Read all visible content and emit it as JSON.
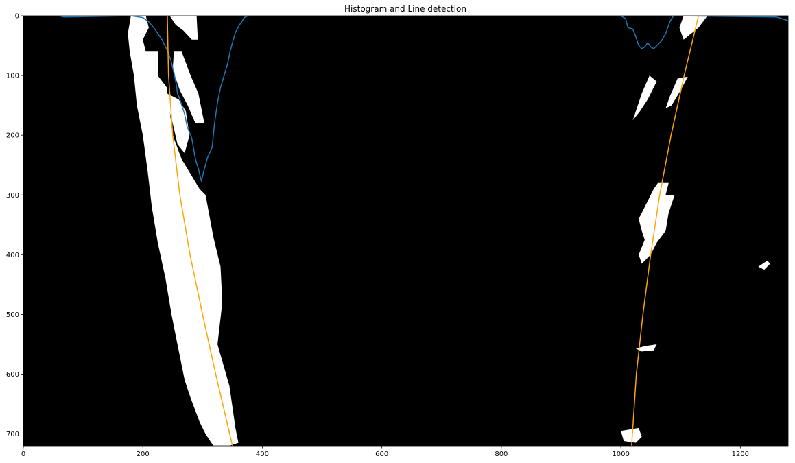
{
  "chart_data": {
    "type": "line",
    "title": "Histogram and Line detection",
    "xlabel": "",
    "ylabel": "",
    "xlim": [
      0,
      1280
    ],
    "ylim": [
      720,
      0
    ],
    "x_ticks": [
      0,
      200,
      400,
      600,
      800,
      1000,
      1200
    ],
    "y_ticks": [
      0,
      100,
      200,
      300,
      400,
      500,
      600,
      700
    ],
    "grid": false,
    "legend": "none",
    "background": "#000000",
    "binary_image": {
      "foreground_color": "#ffffff",
      "description": "bird's-eye binary lane-line image",
      "blobs": [
        [
          [
            180,
            0
          ],
          [
            205,
            0
          ],
          [
            210,
            20
          ],
          [
            200,
            40
          ],
          [
            205,
            60
          ],
          [
            225,
            60
          ],
          [
            225,
            100
          ],
          [
            240,
            120
          ],
          [
            250,
            200
          ],
          [
            265,
            240
          ],
          [
            295,
            290
          ],
          [
            305,
            300
          ],
          [
            318,
            370
          ],
          [
            330,
            420
          ],
          [
            333,
            480
          ],
          [
            325,
            550
          ],
          [
            345,
            620
          ],
          [
            355,
            690
          ],
          [
            360,
            715
          ],
          [
            345,
            720
          ],
          [
            318,
            720
          ],
          [
            305,
            700
          ],
          [
            295,
            680
          ],
          [
            280,
            640
          ],
          [
            270,
            610
          ],
          [
            258,
            550
          ],
          [
            248,
            500
          ],
          [
            238,
            440
          ],
          [
            225,
            380
          ],
          [
            215,
            320
          ],
          [
            208,
            260
          ],
          [
            200,
            200
          ],
          [
            190,
            150
          ],
          [
            185,
            100
          ],
          [
            178,
            60
          ],
          [
            175,
            30
          ]
        ],
        [
          [
            245,
            0
          ],
          [
            290,
            0
          ],
          [
            292,
            40
          ],
          [
            282,
            40
          ],
          [
            268,
            25
          ],
          [
            255,
            15
          ]
        ],
        [
          [
            252,
            60
          ],
          [
            265,
            60
          ],
          [
            280,
            100
          ],
          [
            293,
            130
          ],
          [
            303,
            180
          ],
          [
            288,
            180
          ],
          [
            275,
            150
          ],
          [
            262,
            125
          ],
          [
            250,
            90
          ]
        ],
        [
          [
            240,
            130
          ],
          [
            260,
            140
          ],
          [
            272,
            160
          ],
          [
            278,
            200
          ],
          [
            270,
            230
          ],
          [
            258,
            215
          ],
          [
            250,
            180
          ],
          [
            242,
            150
          ]
        ],
        [
          [
            1105,
            0
          ],
          [
            1145,
            0
          ],
          [
            1130,
            20
          ],
          [
            1105,
            40
          ],
          [
            1098,
            20
          ]
        ],
        [
          [
            1048,
            100
          ],
          [
            1060,
            110
          ],
          [
            1045,
            140
          ],
          [
            1032,
            160
          ],
          [
            1020,
            175
          ],
          [
            1025,
            160
          ],
          [
            1035,
            130
          ]
        ],
        [
          [
            1095,
            105
          ],
          [
            1112,
            102
          ],
          [
            1100,
            125
          ],
          [
            1085,
            150
          ],
          [
            1075,
            155
          ],
          [
            1082,
            135
          ]
        ],
        [
          [
            1062,
            280
          ],
          [
            1080,
            280
          ],
          [
            1075,
            300
          ],
          [
            1090,
            300
          ],
          [
            1080,
            330
          ],
          [
            1075,
            360
          ],
          [
            1060,
            380
          ],
          [
            1050,
            400
          ],
          [
            1035,
            415
          ],
          [
            1030,
            400
          ],
          [
            1040,
            375
          ],
          [
            1035,
            360
          ],
          [
            1030,
            340
          ],
          [
            1045,
            310
          ],
          [
            1055,
            290
          ]
        ],
        [
          [
            1000,
            695
          ],
          [
            1030,
            690
          ],
          [
            1035,
            705
          ],
          [
            1025,
            715
          ],
          [
            1005,
            712
          ]
        ],
        [
          [
            1230,
            420
          ],
          [
            1245,
            410
          ],
          [
            1250,
            415
          ],
          [
            1240,
            425
          ]
        ],
        [
          [
            1025,
            557
          ],
          [
            1040,
            553
          ],
          [
            1060,
            550
          ],
          [
            1055,
            560
          ],
          [
            1035,
            562
          ]
        ]
      ]
    },
    "series": [
      {
        "color": "#1f77b4",
        "kind": "histogram",
        "points": [
          [
            0,
            0
          ],
          [
            60,
            0
          ],
          [
            68,
            2
          ],
          [
            180,
            0
          ],
          [
            200,
            3
          ],
          [
            210,
            10
          ],
          [
            220,
            22
          ],
          [
            232,
            40
          ],
          [
            242,
            60
          ],
          [
            247,
            75
          ],
          [
            252,
            95
          ],
          [
            256,
            115
          ],
          [
            258,
            130
          ],
          [
            262,
            140
          ],
          [
            270,
            165
          ],
          [
            274,
            185
          ],
          [
            282,
            205
          ],
          [
            288,
            240
          ],
          [
            294,
            260
          ],
          [
            298,
            277
          ],
          [
            302,
            260
          ],
          [
            308,
            238
          ],
          [
            316,
            220
          ],
          [
            320,
            180
          ],
          [
            325,
            145
          ],
          [
            330,
            120
          ],
          [
            336,
            100
          ],
          [
            342,
            80
          ],
          [
            346,
            60
          ],
          [
            350,
            45
          ],
          [
            355,
            28
          ],
          [
            362,
            15
          ],
          [
            370,
            3
          ],
          [
            376,
            0
          ],
          [
            1000,
            0
          ],
          [
            1008,
            5
          ],
          [
            1012,
            20
          ],
          [
            1020,
            22
          ],
          [
            1025,
            35
          ],
          [
            1030,
            50
          ],
          [
            1035,
            55
          ],
          [
            1040,
            52
          ],
          [
            1045,
            45
          ],
          [
            1050,
            52
          ],
          [
            1055,
            55
          ],
          [
            1062,
            48
          ],
          [
            1068,
            42
          ],
          [
            1075,
            30
          ],
          [
            1082,
            10
          ],
          [
            1088,
            0
          ],
          [
            1260,
            2
          ],
          [
            1270,
            5
          ],
          [
            1280,
            8
          ]
        ]
      },
      {
        "color": "#ffa500",
        "kind": "left-lane-fit",
        "points": [
          [
            241,
            0
          ],
          [
            243,
            100
          ],
          [
            250,
            200
          ],
          [
            262,
            300
          ],
          [
            279,
            400
          ],
          [
            300,
            500
          ],
          [
            322,
            600
          ],
          [
            350,
            720
          ]
        ]
      },
      {
        "color": "#ffa500",
        "kind": "right-lane-fit",
        "points": [
          [
            1130,
            0
          ],
          [
            1106,
            100
          ],
          [
            1084,
            200
          ],
          [
            1065,
            300
          ],
          [
            1050,
            400
          ],
          [
            1037,
            500
          ],
          [
            1026,
            600
          ],
          [
            1018,
            720
          ]
        ]
      }
    ]
  }
}
